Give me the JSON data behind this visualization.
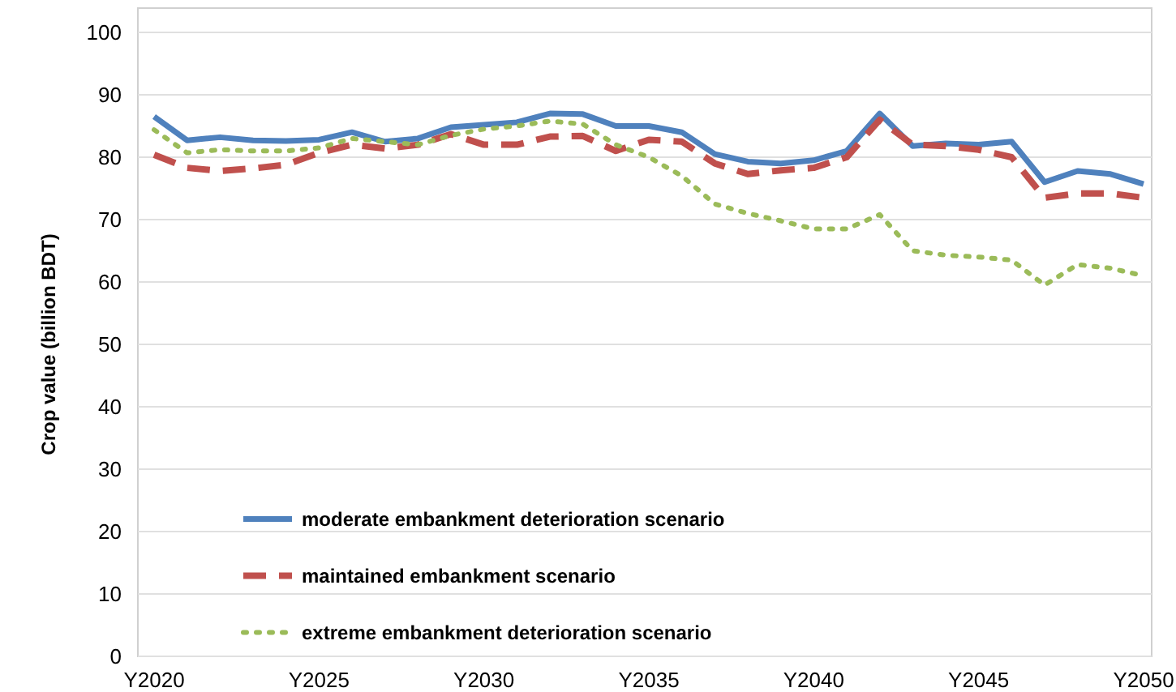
{
  "chart_data": {
    "type": "line",
    "ylabel": "Crop value (billion BDT)",
    "categories": [
      "Y2020",
      null,
      null,
      null,
      null,
      "Y2025",
      null,
      null,
      null,
      null,
      "Y2030",
      null,
      null,
      null,
      null,
      "Y2035",
      null,
      null,
      null,
      null,
      "Y2040",
      null,
      null,
      null,
      null,
      "Y2045",
      null,
      null,
      null,
      null,
      "Y2050"
    ],
    "series": [
      {
        "name": "moderate embankment deterioration scenario",
        "color": "#4f81bd",
        "line_style": "solid",
        "values": [
          86.5,
          82.7,
          83.2,
          82.7,
          82.6,
          82.8,
          84,
          82.5,
          83,
          84.8,
          85.2,
          85.6,
          87,
          86.9,
          85,
          85,
          84,
          80.5,
          79.3,
          79,
          79.5,
          81,
          87,
          81.8,
          82.2,
          82,
          82.5,
          76,
          77.8,
          77.3,
          75.7
        ]
      },
      {
        "name": "maintained embankment scenario",
        "color": "#c0504d",
        "line_style": "dashed",
        "values": [
          80.4,
          78.3,
          77.8,
          78.2,
          78.8,
          80.7,
          82,
          81.4,
          82,
          83.7,
          82,
          82,
          83.3,
          83.4,
          81,
          82.8,
          82.5,
          79,
          77.3,
          77.9,
          78.3,
          80,
          86,
          82,
          81.8,
          81.2,
          80,
          73.5,
          74.2,
          74.2,
          73.5
        ]
      },
      {
        "name": "extreme embankment deterioration scenario",
        "color": "#9bbb59",
        "line_style": "dotted",
        "values": [
          84.4,
          80.7,
          81.2,
          81,
          81,
          81.5,
          83,
          82.5,
          82,
          83.5,
          84.5,
          85,
          85.8,
          85.3,
          82,
          80,
          77,
          72.5,
          71,
          69.8,
          68.5,
          68.5,
          70.8,
          65,
          64.3,
          64,
          63.5,
          59.5,
          62.8,
          62.2,
          61
        ]
      }
    ],
    "ylim": [
      0,
      100
    ],
    "yticks": [
      0,
      10,
      20,
      30,
      40,
      50,
      60,
      70,
      80,
      90,
      100
    ],
    "grid": "y",
    "legend": "bottom left"
  }
}
